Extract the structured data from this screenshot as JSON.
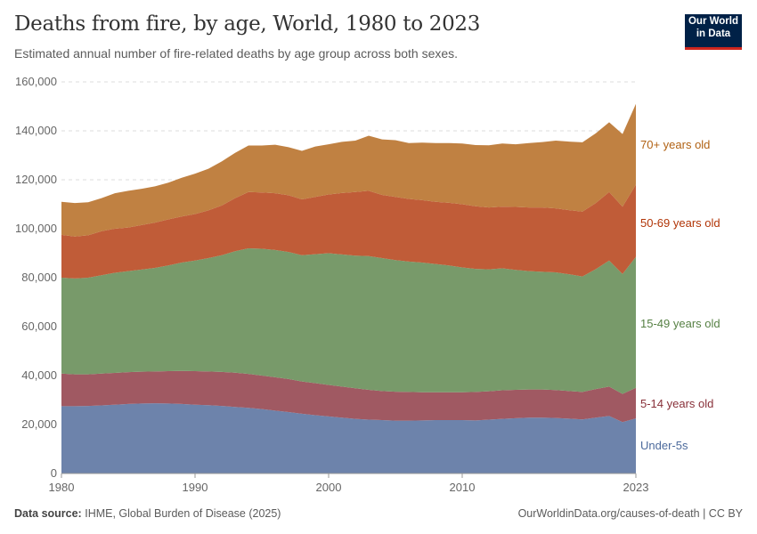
{
  "header": {
    "title": "Deaths from fire, by age, World, 1980 to 2023",
    "subtitle": "Estimated annual number of fire-related deaths by age group across both sexes.",
    "logo": "Our World in Data"
  },
  "footer": {
    "source_label": "Data source:",
    "source": "IHME, Global Burden of Disease (2025)",
    "link": "OurWorldinData.org/causes-of-death | CC BY"
  },
  "chart_data": {
    "type": "area",
    "stacked": true,
    "title": "Deaths from fire, by age, World, 1980 to 2023",
    "xlabel": "",
    "ylabel": "",
    "ylim": [
      0,
      160000
    ],
    "xlim": [
      1980,
      2023
    ],
    "grid": "horizontal dashed",
    "legend": "right, inline labels",
    "y_ticks": [
      "0",
      "20,000",
      "40,000",
      "60,000",
      "80,000",
      "100,000",
      "120,000",
      "140,000",
      "160,000"
    ],
    "x_ticks": [
      "1980",
      "1990",
      "2000",
      "2010",
      "2023"
    ],
    "x": [
      1980,
      1981,
      1982,
      1983,
      1984,
      1985,
      1986,
      1987,
      1988,
      1989,
      1990,
      1991,
      1992,
      1993,
      1994,
      1995,
      1996,
      1997,
      1998,
      1999,
      2000,
      2001,
      2002,
      2003,
      2004,
      2005,
      2006,
      2007,
      2008,
      2009,
      2010,
      2011,
      2012,
      2013,
      2014,
      2015,
      2016,
      2017,
      2018,
      2019,
      2020,
      2021,
      2022,
      2023
    ],
    "series": [
      {
        "name": "Under-5s",
        "color": "#6d83ab",
        "label_color": "#4c6a9c",
        "values": [
          27500,
          27500,
          27600,
          27800,
          28100,
          28400,
          28600,
          28700,
          28600,
          28400,
          28100,
          27900,
          27600,
          27200,
          26800,
          26300,
          25700,
          25100,
          24400,
          23800,
          23300,
          22800,
          22300,
          22000,
          21800,
          21600,
          21600,
          21700,
          21800,
          21800,
          21800,
          21700,
          22000,
          22300,
          22600,
          22800,
          22800,
          22700,
          22400,
          22100,
          22800,
          23500,
          21000,
          22500
        ]
      },
      {
        "name": "5-14 years old",
        "color": "#a05962",
        "label_color": "#883039",
        "values": [
          13300,
          13000,
          12900,
          13000,
          13000,
          13000,
          13000,
          13000,
          13200,
          13500,
          13700,
          13800,
          13900,
          14000,
          13900,
          13700,
          13600,
          13500,
          13200,
          13100,
          12900,
          12700,
          12500,
          12200,
          11900,
          11800,
          11700,
          11500,
          11400,
          11400,
          11400,
          11600,
          11600,
          11700,
          11600,
          11500,
          11500,
          11400,
          11300,
          11200,
          11700,
          12000,
          11500,
          12500
        ]
      },
      {
        "name": "15-49 years old",
        "color": "#789a6a",
        "label_color": "#578145",
        "values": [
          39200,
          39200,
          39500,
          40200,
          40900,
          41300,
          41700,
          42300,
          43200,
          44300,
          45200,
          46300,
          47700,
          49600,
          51300,
          51800,
          52000,
          51900,
          51600,
          52700,
          53800,
          54000,
          54200,
          54600,
          54300,
          53800,
          53300,
          53000,
          52400,
          51800,
          51000,
          50300,
          49800,
          49800,
          49000,
          48400,
          48100,
          48100,
          47700,
          47200,
          49000,
          51500,
          49000,
          53500
        ]
      },
      {
        "name": "50-69 years old",
        "color": "#c05c38",
        "label_color": "#b13507",
        "values": [
          17500,
          17100,
          17300,
          18000,
          18000,
          17800,
          18200,
          18500,
          18800,
          18800,
          19000,
          19500,
          20300,
          21700,
          23000,
          23000,
          23200,
          23200,
          22800,
          23400,
          24000,
          25100,
          26000,
          26700,
          25800,
          25800,
          25600,
          25500,
          25400,
          25600,
          25800,
          25600,
          25300,
          25200,
          25700,
          26000,
          26300,
          26100,
          26200,
          26500,
          27000,
          28000,
          27500,
          29500
        ]
      },
      {
        "name": "70+ years old",
        "color": "#c08142",
        "label_color": "#b16214",
        "values": [
          13500,
          13700,
          13500,
          13500,
          14500,
          15000,
          14800,
          14800,
          15000,
          15800,
          16500,
          17000,
          18000,
          18500,
          19000,
          19200,
          19800,
          19600,
          19800,
          20600,
          20500,
          20900,
          21000,
          22500,
          22700,
          23200,
          22800,
          23500,
          24000,
          24400,
          24800,
          25000,
          25400,
          25800,
          25600,
          26300,
          26700,
          27700,
          28000,
          28300,
          28500,
          28500,
          29700,
          33000
        ]
      }
    ]
  }
}
